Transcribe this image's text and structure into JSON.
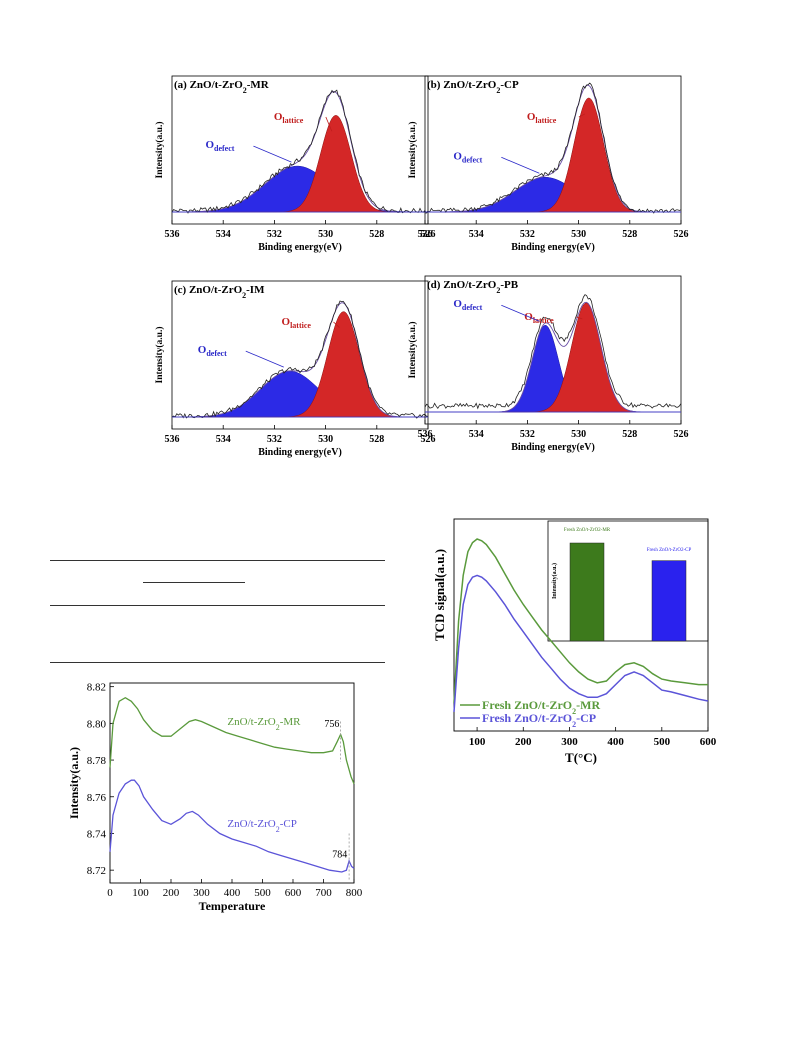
{
  "xps": {
    "xlabel": "Binding energy(eV)",
    "ylabel": "Intensity(a.u.)",
    "xticks": [
      "536",
      "534",
      "532",
      "530",
      "528",
      "526"
    ],
    "label_lattice_main": "O",
    "label_lattice_sub": "lattice",
    "label_defect_main": "O",
    "label_defect_sub": "defect",
    "colors": {
      "lattice": "#d42727",
      "defect": "#2c2ae6",
      "envelope": "#6a4fa6",
      "raw": "#222222"
    }
  },
  "table_fragment": {
    "rules": 4
  },
  "tpr": {
    "xlabel": "Temperature",
    "ylabel": "Intensity(a.u.)",
    "yticks": [
      "8.82",
      "8.80",
      "8.78",
      "8.76",
      "8.74",
      "8.72"
    ],
    "xticks": [
      "0",
      "100",
      "200",
      "300",
      "400",
      "500",
      "600",
      "700",
      "800"
    ],
    "annotation_mr": "756",
    "annotation_cp": "784",
    "colors": {
      "mr": "#5a9a3c",
      "cp": "#5b54d8"
    }
  },
  "tcd": {
    "xlabel": "T(°C)",
    "ylabel": "TCD signal(a.u.)",
    "xticks": [
      "100",
      "200",
      "300",
      "400",
      "500",
      "600"
    ],
    "legend": [
      "Fresh ZnO/t-ZrO2-MR",
      "Fresh ZnO/t-ZrO2-CP"
    ],
    "inset_ylabel": "Intensity(a.u.)",
    "inset_bar_labels": [
      "Fresh ZnO/t-ZrO2-MR",
      "Fresh ZnO/t-ZrO2-CP"
    ],
    "colors": {
      "mr": "#3d7a1c",
      "cp": "#2a22ee",
      "mr_line": "#5a9a3c",
      "cp_line": "#5b54d8"
    }
  },
  "chart_data": [
    {
      "type": "area",
      "title": "(a) ZnO/t-ZrO2-MR",
      "x_range": [
        536,
        526
      ],
      "series": [
        {
          "name": "Olattice",
          "center": 529.6,
          "height": 0.78,
          "fwhm": 1.4
        },
        {
          "name": "Odefect",
          "center": 531.1,
          "height": 0.37,
          "fwhm": 3.0
        }
      ]
    },
    {
      "type": "area",
      "title": "(b) ZnO/t-ZrO2-CP",
      "x_range": [
        536,
        526
      ],
      "series": [
        {
          "name": "Olattice",
          "center": 529.6,
          "height": 0.92,
          "fwhm": 1.35
        },
        {
          "name": "Odefect",
          "center": 531.3,
          "height": 0.28,
          "fwhm": 2.8
        }
      ]
    },
    {
      "type": "area",
      "title": "(c) ZnO/t-ZrO2-IM",
      "x_range": [
        536,
        526
      ],
      "series": [
        {
          "name": "Olattice",
          "center": 529.3,
          "height": 0.85,
          "fwhm": 1.45
        },
        {
          "name": "Odefect",
          "center": 531.4,
          "height": 0.37,
          "fwhm": 2.7
        }
      ]
    },
    {
      "type": "area",
      "title": "(d) ZnO/t-ZrO2-PB",
      "x_range": [
        536,
        526
      ],
      "series": [
        {
          "name": "Olattice",
          "center": 529.7,
          "height": 0.88,
          "fwhm": 1.35
        },
        {
          "name": "Odefect",
          "center": 531.3,
          "height": 0.7,
          "fwhm": 1.2
        }
      ]
    },
    {
      "type": "line",
      "xlabel": "Temperature",
      "ylabel": "Intensity(a.u.)",
      "xlim": [
        0,
        800
      ],
      "ylim": [
        8.713,
        8.822
      ],
      "series": [
        {
          "name": "ZnO/t-ZrO2-MR",
          "x": [
            0,
            10,
            30,
            50,
            70,
            90,
            110,
            140,
            170,
            200,
            230,
            260,
            280,
            300,
            340,
            380,
            420,
            460,
            500,
            540,
            580,
            620,
            660,
            700,
            730,
            745,
            756,
            765,
            775,
            790,
            800
          ],
          "y": [
            8.776,
            8.8,
            8.812,
            8.814,
            8.812,
            8.808,
            8.802,
            8.796,
            8.793,
            8.793,
            8.797,
            8.801,
            8.802,
            8.801,
            8.798,
            8.795,
            8.793,
            8.791,
            8.789,
            8.787,
            8.786,
            8.785,
            8.784,
            8.784,
            8.785,
            8.79,
            8.794,
            8.79,
            8.78,
            8.771,
            8.767
          ]
        },
        {
          "name": "ZnO/t-ZrO2-CP",
          "x": [
            0,
            10,
            30,
            50,
            70,
            80,
            95,
            110,
            140,
            170,
            200,
            230,
            250,
            270,
            290,
            320,
            360,
            400,
            440,
            480,
            520,
            560,
            600,
            640,
            680,
            720,
            760,
            775,
            784,
            792,
            800
          ],
          "y": [
            8.73,
            8.75,
            8.762,
            8.767,
            8.769,
            8.769,
            8.766,
            8.76,
            8.753,
            8.747,
            8.745,
            8.748,
            8.751,
            8.752,
            8.75,
            8.745,
            8.74,
            8.737,
            8.735,
            8.733,
            8.73,
            8.728,
            8.726,
            8.724,
            8.722,
            8.72,
            8.719,
            8.72,
            8.725,
            8.722,
            8.721
          ]
        }
      ]
    },
    {
      "type": "line",
      "xlabel": "T(°C)",
      "ylabel": "TCD signal(a.u.)",
      "xlim": [
        50,
        600
      ],
      "series": [
        {
          "name": "Fresh ZnO/t-ZrO2-MR",
          "x": [
            50,
            60,
            70,
            80,
            90,
            100,
            110,
            120,
            140,
            160,
            180,
            200,
            220,
            240,
            260,
            280,
            300,
            320,
            340,
            360,
            380,
            400,
            420,
            440,
            460,
            480,
            500,
            520,
            550,
            580,
            600
          ],
          "y": [
            0.1,
            0.55,
            0.8,
            0.93,
            0.98,
            1.0,
            0.99,
            0.97,
            0.9,
            0.81,
            0.72,
            0.64,
            0.57,
            0.5,
            0.44,
            0.38,
            0.32,
            0.27,
            0.23,
            0.21,
            0.22,
            0.27,
            0.31,
            0.32,
            0.3,
            0.26,
            0.23,
            0.22,
            0.21,
            0.2,
            0.2
          ]
        },
        {
          "name": "Fresh ZnO/t-ZrO2-CP",
          "x": [
            50,
            60,
            70,
            80,
            90,
            100,
            110,
            120,
            140,
            160,
            180,
            200,
            220,
            240,
            260,
            280,
            300,
            320,
            340,
            360,
            380,
            400,
            420,
            440,
            460,
            480,
            500,
            520,
            550,
            580,
            600
          ],
          "y": [
            0.05,
            0.4,
            0.64,
            0.75,
            0.79,
            0.8,
            0.79,
            0.77,
            0.71,
            0.64,
            0.56,
            0.49,
            0.42,
            0.35,
            0.29,
            0.23,
            0.18,
            0.15,
            0.13,
            0.13,
            0.15,
            0.2,
            0.25,
            0.27,
            0.25,
            0.21,
            0.17,
            0.16,
            0.14,
            0.12,
            0.11
          ]
        }
      ],
      "inset": {
        "type": "bar",
        "ylabel": "Intensity(a.u.)",
        "categories": [
          "Fresh ZnO/t-ZrO2-MR",
          "Fresh ZnO/t-ZrO2-CP"
        ],
        "values": [
          1.0,
          0.82
        ]
      }
    }
  ]
}
